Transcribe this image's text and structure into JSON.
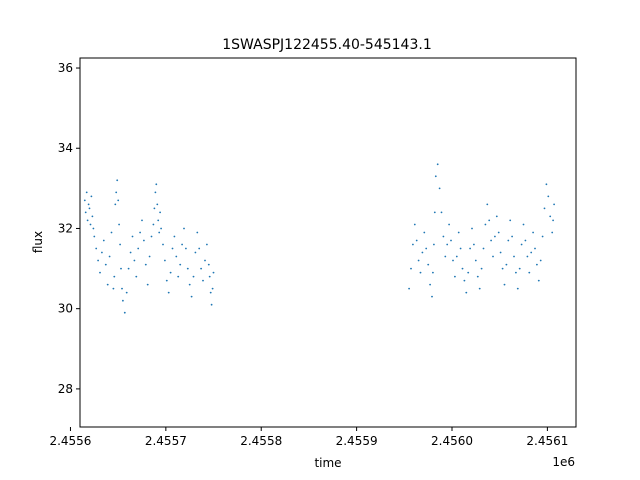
{
  "chart_data": {
    "type": "scatter",
    "title": "1SWASPJ122455.40-545143.1",
    "xlabel": "time",
    "ylabel": "flux",
    "x_offset_label": "1e6",
    "xlim": [
      2455610,
      2456130
    ],
    "ylim": [
      27.05,
      36.25
    ],
    "xticks": [
      2455600,
      2455700,
      2455800,
      2455900,
      2456000,
      2456100
    ],
    "xtick_labels": [
      "2.4556",
      "2.4557",
      "2.4558",
      "2.4559",
      "2.4560",
      "2.4561"
    ],
    "yticks": [
      28,
      30,
      32,
      34,
      36
    ],
    "ytick_labels": [
      "28",
      "30",
      "32",
      "34",
      "36"
    ],
    "grid": false,
    "marker_color": "#1f77b4",
    "series": [
      {
        "x": [
          2455615,
          2455616,
          2455617,
          2455618,
          2455619,
          2455620,
          2455621,
          2455622,
          2455623,
          2455624,
          2455625,
          2455627,
          2455629,
          2455631,
          2455633,
          2455635,
          2455637,
          2455639,
          2455641,
          2455643,
          2455645,
          2455646,
          2455647,
          2455648,
          2455649,
          2455650,
          2455651,
          2455652,
          2455653,
          2455654,
          2455655,
          2455657,
          2455659,
          2455661,
          2455663,
          2455665,
          2455667,
          2455669,
          2455671,
          2455673,
          2455675,
          2455677,
          2455679,
          2455681,
          2455683,
          2455685,
          2455687,
          2455688,
          2455689,
          2455690,
          2455691,
          2455692,
          2455693,
          2455694,
          2455695,
          2455697,
          2455699,
          2455701,
          2455703,
          2455705,
          2455707,
          2455709,
          2455711,
          2455713,
          2455715,
          2455717,
          2455719,
          2455721,
          2455723,
          2455725,
          2455727,
          2455729,
          2455731,
          2455733,
          2455735,
          2455737,
          2455739,
          2455741,
          2455743,
          2455745,
          2455746,
          2455747,
          2455748,
          2455749,
          2455750,
          2455955,
          2455957,
          2455959,
          2455961,
          2455963,
          2455965,
          2455967,
          2455969,
          2455971,
          2455973,
          2455975,
          2455977,
          2455979,
          2455980,
          2455981,
          2455982,
          2455983,
          2455985,
          2455987,
          2455989,
          2455991,
          2455993,
          2455995,
          2455997,
          2455999,
          2456001,
          2456003,
          2456005,
          2456007,
          2456009,
          2456011,
          2456013,
          2456015,
          2456017,
          2456019,
          2456021,
          2456023,
          2456025,
          2456027,
          2456029,
          2456031,
          2456033,
          2456035,
          2456037,
          2456039,
          2456041,
          2456043,
          2456045,
          2456047,
          2456049,
          2456051,
          2456053,
          2456055,
          2456057,
          2456059,
          2456061,
          2456063,
          2456065,
          2456067,
          2456069,
          2456071,
          2456073,
          2456075,
          2456077,
          2456079,
          2456081,
          2456083,
          2456085,
          2456087,
          2456089,
          2456091,
          2456093,
          2456095,
          2456097,
          2456099,
          2456101,
          2456103,
          2456105,
          2456106,
          2456107
        ],
        "y": [
          32.7,
          32.4,
          32.9,
          32.2,
          32.6,
          32.5,
          32.1,
          32.8,
          32.3,
          32.0,
          31.8,
          31.5,
          31.2,
          30.9,
          31.4,
          31.7,
          31.1,
          30.6,
          31.3,
          31.9,
          30.5,
          30.8,
          32.6,
          32.9,
          33.2,
          32.7,
          32.1,
          31.6,
          31.0,
          30.5,
          30.2,
          29.9,
          30.4,
          31.0,
          31.4,
          31.8,
          31.2,
          30.8,
          31.5,
          31.9,
          32.2,
          31.7,
          31.1,
          30.6,
          31.3,
          31.8,
          32.1,
          32.5,
          32.9,
          33.1,
          32.6,
          32.2,
          31.9,
          32.4,
          32.0,
          31.6,
          31.2,
          30.7,
          30.4,
          30.9,
          31.5,
          31.8,
          31.3,
          30.8,
          31.1,
          31.6,
          32.0,
          31.5,
          31.0,
          30.6,
          30.3,
          30.8,
          31.4,
          31.9,
          31.5,
          31.0,
          30.7,
          31.2,
          31.6,
          31.1,
          30.8,
          30.4,
          30.1,
          30.5,
          30.9,
          30.5,
          31.0,
          31.6,
          32.1,
          31.7,
          31.2,
          30.9,
          31.4,
          31.9,
          31.5,
          31.1,
          30.6,
          30.3,
          30.9,
          31.6,
          32.4,
          33.3,
          33.6,
          33.0,
          32.4,
          31.8,
          31.3,
          31.6,
          32.1,
          31.7,
          31.2,
          30.8,
          31.3,
          31.9,
          31.5,
          31.0,
          30.7,
          30.4,
          30.9,
          31.5,
          32.0,
          31.6,
          31.2,
          30.8,
          30.5,
          31.0,
          31.5,
          32.1,
          32.6,
          32.2,
          31.7,
          31.3,
          31.8,
          32.3,
          31.9,
          31.4,
          31.0,
          30.6,
          31.1,
          31.7,
          32.2,
          31.8,
          31.3,
          30.9,
          30.5,
          31.0,
          31.6,
          32.1,
          31.7,
          31.3,
          30.9,
          31.4,
          31.9,
          31.5,
          31.1,
          30.7,
          31.2,
          31.8,
          32.5,
          33.1,
          32.8,
          32.3,
          31.9,
          32.2,
          32.6
        ]
      }
    ]
  }
}
